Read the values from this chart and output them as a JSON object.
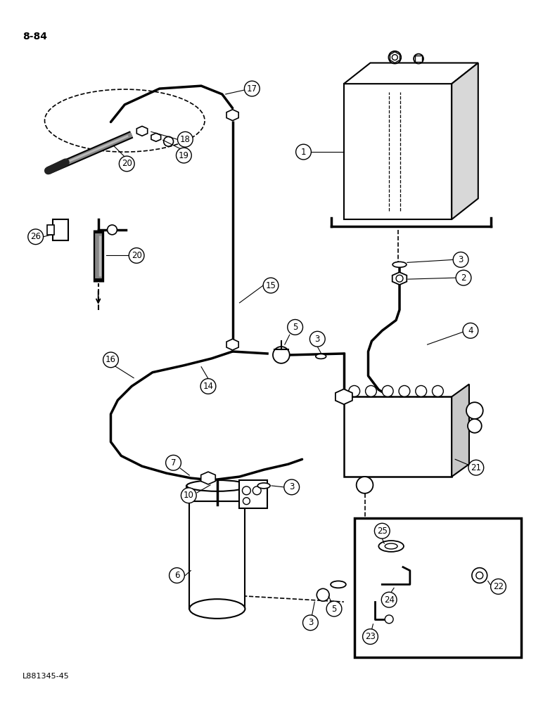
{
  "background_color": "#ffffff",
  "page_label": "8-84",
  "footer_label": "L881345-45",
  "line_color": "#000000"
}
